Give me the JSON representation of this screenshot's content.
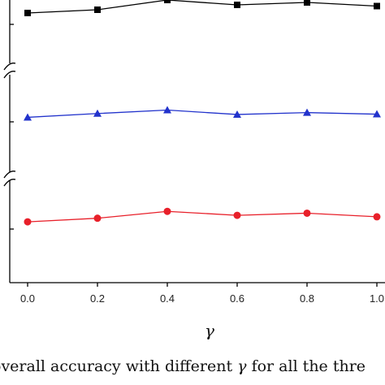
{
  "chart_data": {
    "type": "line",
    "x": [
      0.0,
      0.2,
      0.4,
      0.6,
      0.8,
      1.0
    ],
    "x_tick_labels": [
      "0.0",
      "0.2",
      "0.4",
      "0.6",
      "0.8",
      "1.0"
    ],
    "xlim": [
      0.0,
      1.0
    ],
    "xlabel": "γ",
    "ylabel": "",
    "y_axis_broken": true,
    "grid": false,
    "series": [
      {
        "marker": "square",
        "color": "#000000",
        "values": [
          0.4,
          0.48,
          0.72,
          0.6,
          0.66,
          0.57
        ]
      },
      {
        "marker": "triangle",
        "color": "#2233cc",
        "values": [
          0.4,
          0.52,
          0.63,
          0.49,
          0.55,
          0.5
        ]
      },
      {
        "marker": "circle",
        "color": "#e8202a",
        "values": [
          0.38,
          0.48,
          0.67,
          0.56,
          0.62,
          0.52
        ]
      }
    ]
  },
  "caption": {
    "before": "overall accuracy with different ",
    "symbol": "γ",
    "after": " for all the thre"
  }
}
